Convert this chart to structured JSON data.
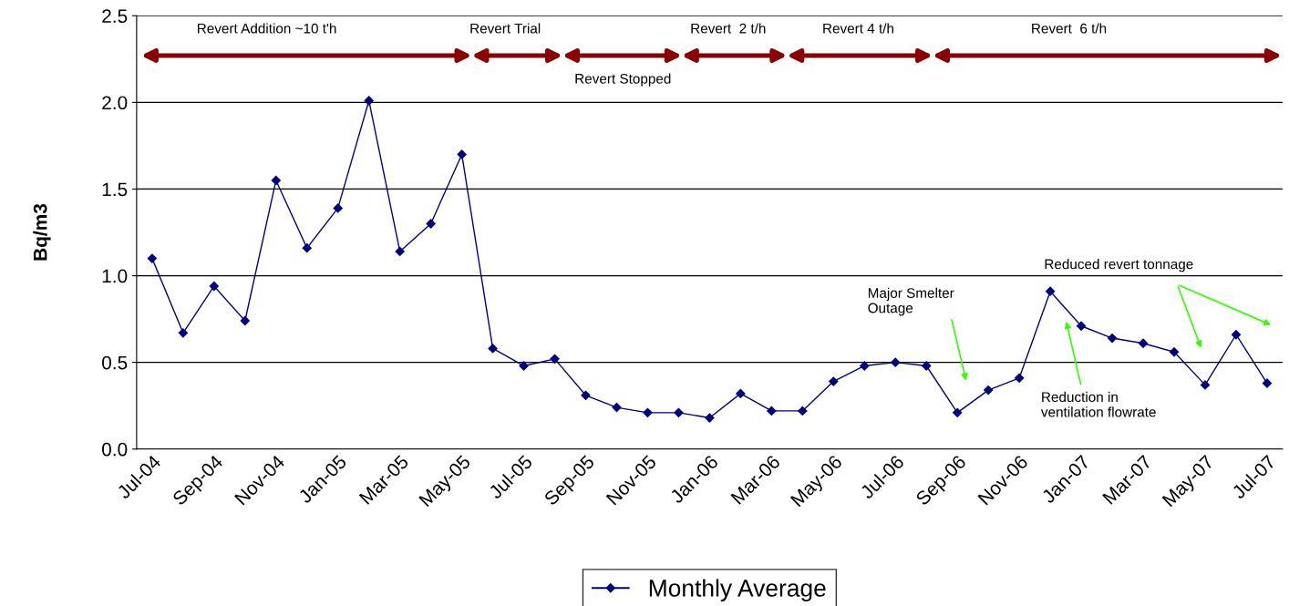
{
  "chart_data": {
    "type": "line",
    "ylabel": "Bq/m3",
    "categories": [
      "Jul-04",
      null,
      "Sep-04",
      null,
      "Nov-04",
      null,
      "Jan-05",
      null,
      "Mar-05",
      null,
      "May-05",
      null,
      "Jul-05",
      null,
      "Sep-05",
      null,
      "Nov-05",
      null,
      "Jan-06",
      null,
      "Mar-06",
      null,
      "May-06",
      null,
      "Jul-06",
      null,
      "Sep-06",
      null,
      "Nov-06",
      null,
      "Jan-07",
      null,
      "Mar-07",
      null,
      "May-07",
      null,
      "Jul-07"
    ],
    "series": [
      {
        "name": "Monthly Average",
        "color": "#000080",
        "values": [
          1.1,
          0.67,
          0.94,
          0.74,
          1.55,
          1.16,
          1.39,
          2.01,
          1.14,
          1.3,
          1.7,
          0.58,
          0.48,
          0.52,
          0.31,
          0.24,
          0.21,
          0.21,
          0.18,
          0.32,
          0.22,
          0.22,
          0.39,
          0.48,
          0.5,
          0.48,
          0.21,
          0.34,
          0.41,
          0.91,
          0.71,
          0.64,
          0.61,
          0.56,
          0.37,
          0.66,
          0.38
        ]
      }
    ],
    "ylim": [
      0,
      2.5
    ],
    "yticks": [
      {
        "value": 0,
        "label": "0.0"
      },
      {
        "value": 0.5,
        "label": "0.5"
      },
      {
        "value": 1,
        "label": "1.0"
      },
      {
        "value": 1.5,
        "label": "1.5"
      },
      {
        "value": 2,
        "label": "2.0"
      },
      {
        "value": 2.5,
        "label": "2.5"
      }
    ],
    "grid": "y",
    "legend": "bottom",
    "marker": "diamond",
    "line_style": "solid",
    "annotations": [
      "Revert Addition ~10 t'h",
      "Revert Trial",
      "Revert Stopped",
      "Revert  2 t/h",
      "Revert 4 t/h",
      "Revert  6 t/h",
      "Major Smelter\nOutage",
      "Reduction in\nventilation flowrate",
      "Reduced revert tonnage"
    ]
  }
}
